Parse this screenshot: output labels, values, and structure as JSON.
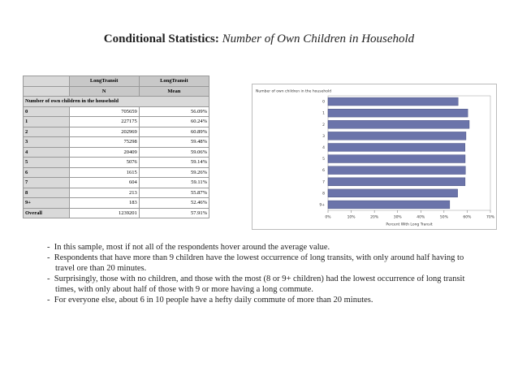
{
  "header": {
    "title_bold": "Conditional Statistics:",
    "title_italic": "Number of Own Children in Household"
  },
  "table": {
    "group_headers": [
      "LongTransit",
      "LongTransit"
    ],
    "columns": [
      "N",
      "Mean"
    ],
    "row_header": "Number of own children in the household",
    "rows": [
      [
        "0",
        705659,
        "56.09%"
      ],
      [
        "1",
        227175,
        "60.24%"
      ],
      [
        "2",
        202969,
        "60.89%"
      ],
      [
        "3",
        75298,
        "59.48%"
      ],
      [
        "4",
        20409,
        "59.06%"
      ],
      [
        "5",
        5076,
        "59.14%"
      ],
      [
        "6",
        1615,
        "59.26%"
      ],
      [
        "7",
        604,
        "59.11%"
      ],
      [
        "8",
        213,
        "55.87%"
      ],
      [
        "9+",
        183,
        "52.46%"
      ],
      [
        "Overall",
        1239201,
        "57.91%"
      ]
    ]
  },
  "chart_data": {
    "type": "hbar",
    "title": "Number of own children in the household",
    "x_label": "Percent With Long Transit",
    "categories": [
      "0",
      "1",
      "2",
      "3",
      "4",
      "5",
      "6",
      "7",
      "8",
      "9+"
    ],
    "values": [
      56.09,
      60.24,
      60.89,
      59.48,
      59.06,
      59.14,
      59.26,
      59.11,
      55.87,
      52.46
    ],
    "color": "#6b74aa",
    "xlim": [
      0,
      70
    ],
    "xticks": [
      {
        "value": 0,
        "label": "0%"
      },
      {
        "value": 10,
        "label": "10%"
      },
      {
        "value": 20,
        "label": "20%"
      },
      {
        "value": 30,
        "label": "30%"
      },
      {
        "value": 40,
        "label": "40%"
      },
      {
        "value": 50,
        "label": "50%"
      },
      {
        "value": 60,
        "label": "60%"
      },
      {
        "value": 70,
        "label": "70%"
      }
    ]
  },
  "bullets": [
    "In this sample, most if not all of the respondents hover around the average value.",
    "Respondents that have more than 9 children have the lowest occurrence of long transits, with only around half having to travel ore than 20 minutes.",
    "Surprisingly, those with no children, and those with the most (8 or 9+ children) had the lowest occurrence of long transit times, with only about half of those with 9 or more having a long commute.",
    "For everyone else, about 6 in 10 people have a hefty daily commute of more than 20 minutes."
  ]
}
